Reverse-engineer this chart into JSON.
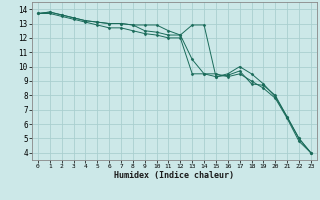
{
  "title": "",
  "xlabel": "Humidex (Indice chaleur)",
  "ylabel": "",
  "xlim": [
    -0.5,
    23.5
  ],
  "ylim": [
    3.5,
    14.5
  ],
  "xticks": [
    0,
    1,
    2,
    3,
    4,
    5,
    6,
    7,
    8,
    9,
    10,
    11,
    12,
    13,
    14,
    15,
    16,
    17,
    18,
    19,
    20,
    21,
    22,
    23
  ],
  "yticks": [
    4,
    5,
    6,
    7,
    8,
    9,
    10,
    11,
    12,
    13,
    14
  ],
  "background_color": "#cce8e8",
  "grid_color": "#aacfcf",
  "line_color": "#1a6b5a",
  "series": [
    [
      13.7,
      13.8,
      13.6,
      13.4,
      13.2,
      13.1,
      13.0,
      13.0,
      12.9,
      12.9,
      12.9,
      12.5,
      12.2,
      12.9,
      12.9,
      9.3,
      9.5,
      10.0,
      9.5,
      8.8,
      7.9,
      6.5,
      5.0,
      4.0
    ],
    [
      13.7,
      13.8,
      13.6,
      13.4,
      13.2,
      13.1,
      13.0,
      13.0,
      12.9,
      12.5,
      12.4,
      12.2,
      12.2,
      10.5,
      9.5,
      9.3,
      9.4,
      9.7,
      8.8,
      8.7,
      8.0,
      6.5,
      5.0,
      4.0
    ],
    [
      13.7,
      13.7,
      13.5,
      13.3,
      13.1,
      12.9,
      12.7,
      12.7,
      12.5,
      12.3,
      12.2,
      12.0,
      12.0,
      9.5,
      9.5,
      9.5,
      9.3,
      9.5,
      9.0,
      8.5,
      7.8,
      6.4,
      4.8,
      4.0
    ]
  ]
}
